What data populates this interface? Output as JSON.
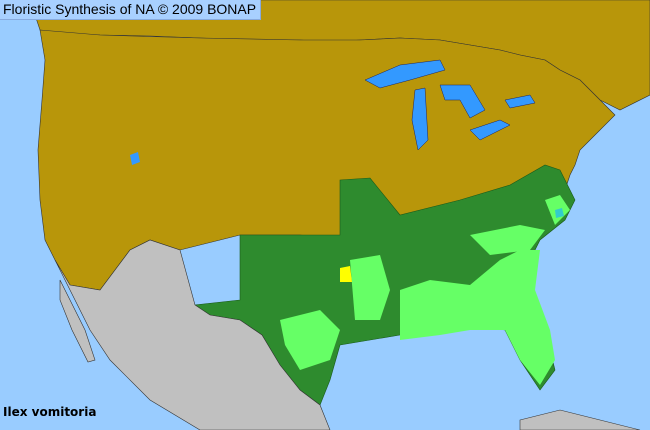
{
  "title": "Floristic Synthesis of NA © 2009 BONAP",
  "species": "Ilex vomitoria",
  "colors": {
    "ocean": "#99ccff",
    "lakes": "#3399ff",
    "species_absent_region": "#b8960a",
    "non_covered_region": "#c0c0c0",
    "native_state": "#2e8b2e",
    "native_county": "#66ff66",
    "adventive_county": "#33cccc",
    "special_county": "#ffff00",
    "border": "#333333"
  }
}
